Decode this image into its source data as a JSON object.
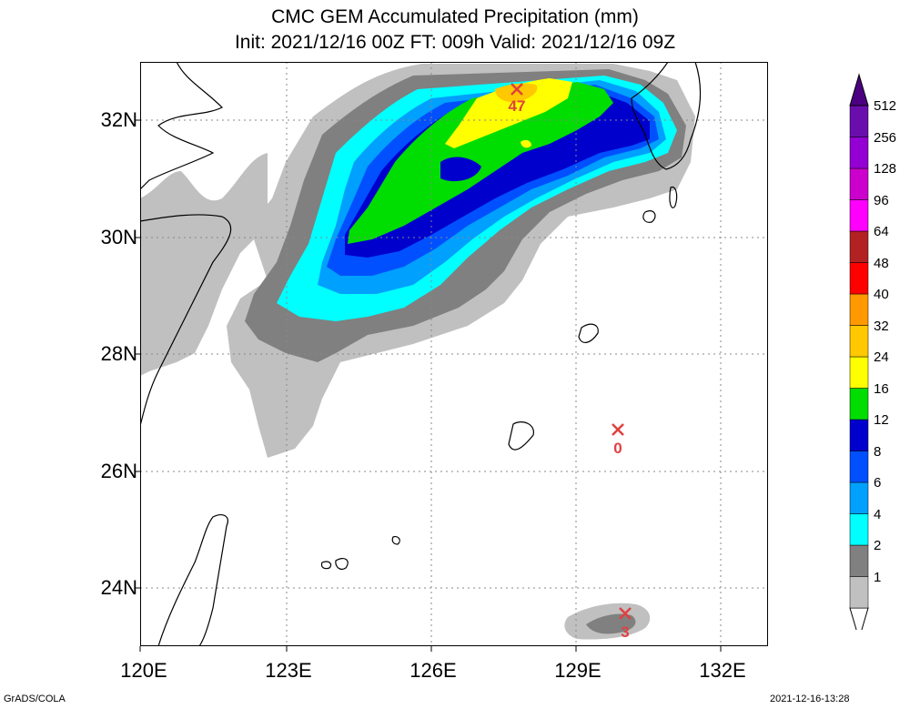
{
  "title": {
    "line1": "CMC GEM Accumulated Precipitation (mm)",
    "line2": "Init: 2021/12/16 00Z  FT: 009h  Valid: 2021/12/16 09Z"
  },
  "lat_labels": [
    "32N",
    "30N",
    "28N",
    "26N",
    "24N"
  ],
  "lon_labels": [
    "120E",
    "123E",
    "126E",
    "129E",
    "132E"
  ],
  "colorbar": {
    "levels": [
      "512",
      "256",
      "128",
      "96",
      "64",
      "48",
      "40",
      "32",
      "24",
      "16",
      "12",
      "8",
      "6",
      "4",
      "2",
      "1"
    ],
    "colors": [
      "#c0c0c0",
      "#808080",
      "#00ffff",
      "#00a0ff",
      "#0050ff",
      "#0000cd",
      "#00dd00",
      "#ffff00",
      "#ffc800",
      "#ff9900",
      "#ff0000",
      "#b22222",
      "#ff00ff",
      "#cc00cc",
      "#9400d3",
      "#6a0dad"
    ]
  },
  "stations": [
    {
      "value": "47"
    },
    {
      "value": "0"
    },
    {
      "value": "3"
    }
  ],
  "footer": {
    "left": "GrADS/COLA",
    "right": "2021-12-16-13:28"
  }
}
